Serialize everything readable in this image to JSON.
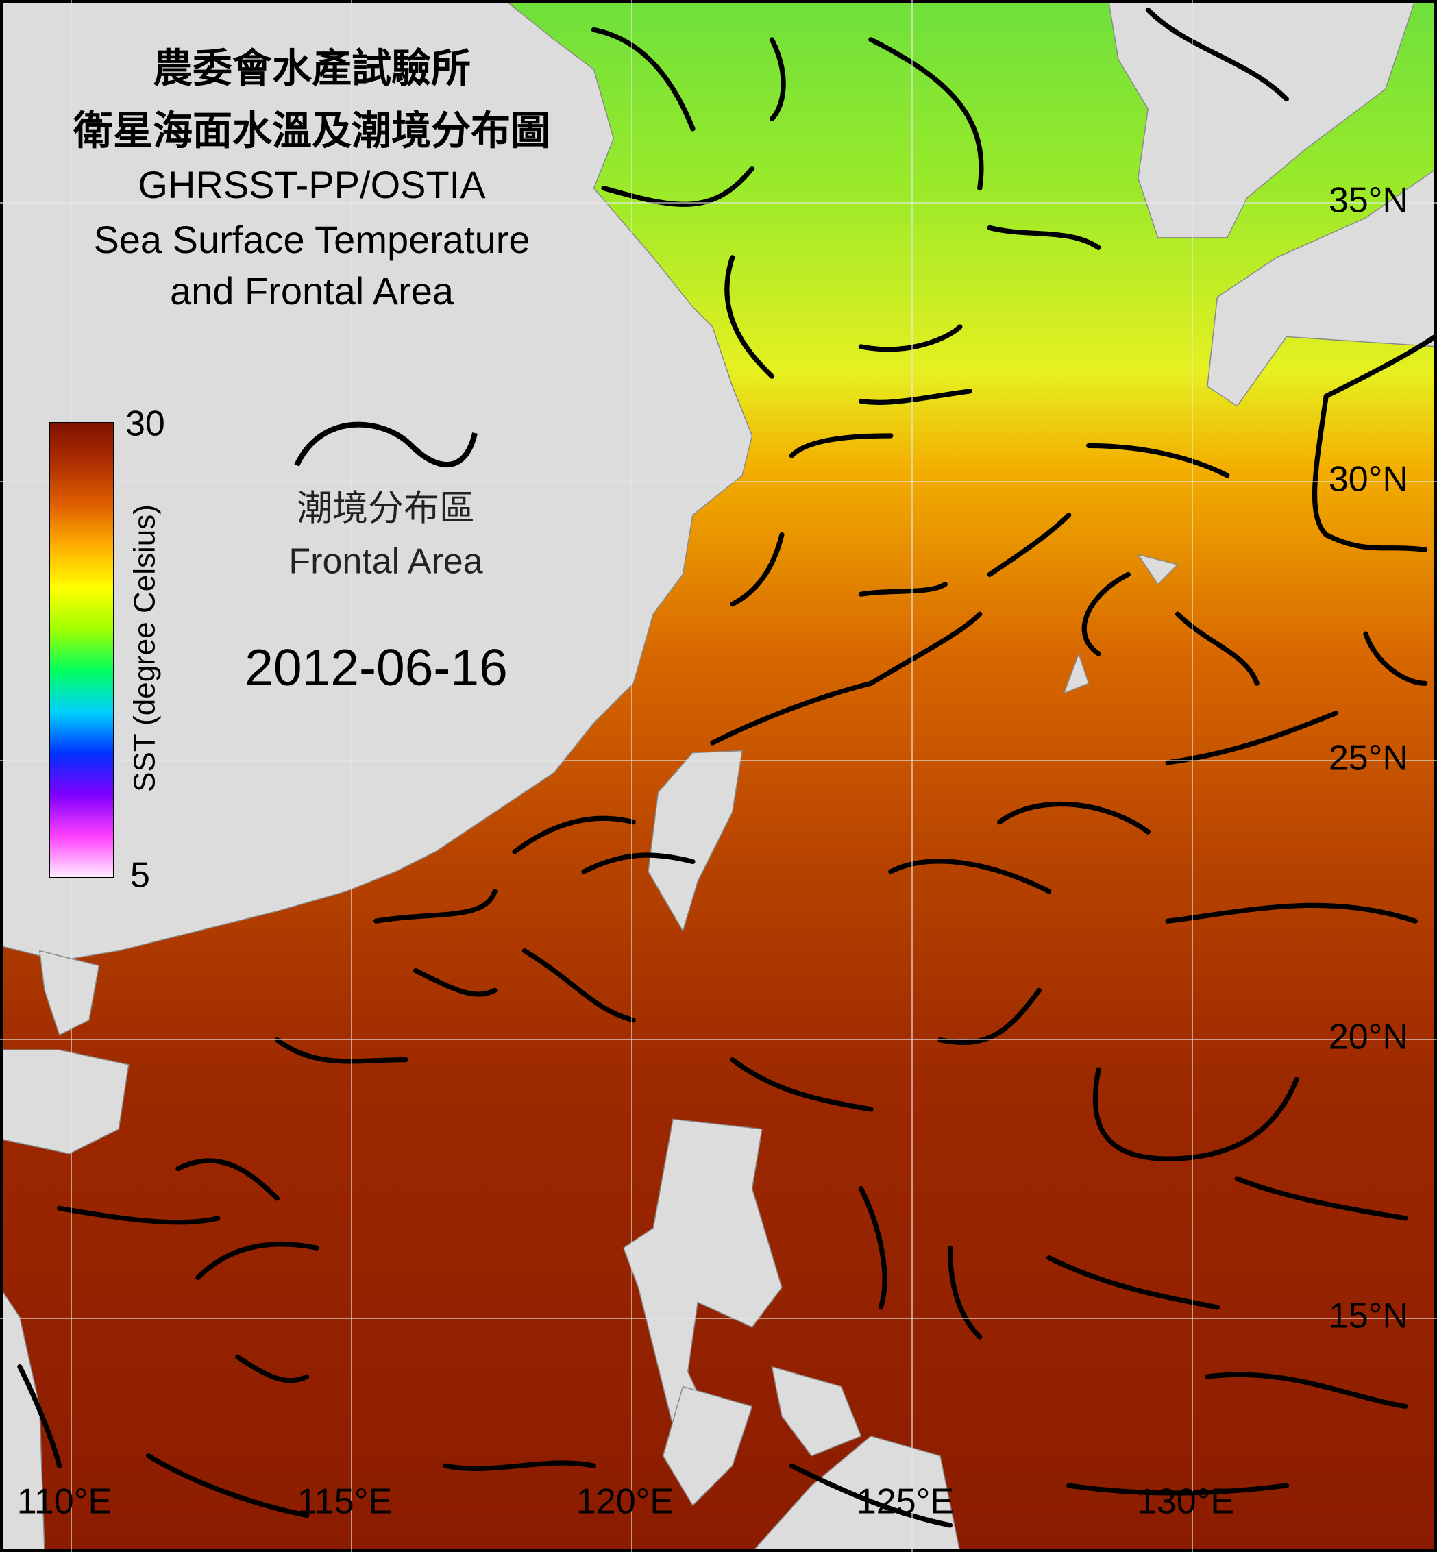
{
  "title_lines": [
    "農委會水產試驗所",
    "衛星海面水溫及潮境分布圖",
    "GHRSST-PP/OSTIA",
    "Sea Surface Temperature",
    "and Frontal Area"
  ],
  "legend": {
    "front_zh": "潮境分布區",
    "front_en": "Frontal Area"
  },
  "date": "2012-06-16",
  "colorbar": {
    "label": "SST (degree Celsius)",
    "min": 5,
    "max": 30,
    "colors": [
      "#fff0ff",
      "#ff40ff",
      "#8000ff",
      "#0030ff",
      "#00d0ff",
      "#00ff60",
      "#a0ff00",
      "#ffff00",
      "#ffb000",
      "#e06000",
      "#b03000",
      "#801000"
    ]
  },
  "lon_ticks": [
    {
      "value": 110,
      "label": "110°E"
    },
    {
      "value": 115,
      "label": "115°E"
    },
    {
      "value": 120,
      "label": "120°E"
    },
    {
      "value": 125,
      "label": "125°E"
    },
    {
      "value": 130,
      "label": "130°E"
    }
  ],
  "lat_ticks": [
    {
      "value": 35,
      "label": "35°N"
    },
    {
      "value": 30,
      "label": "30°N"
    },
    {
      "value": 25,
      "label": "25°N"
    },
    {
      "value": 20,
      "label": "20°N"
    },
    {
      "value": 15,
      "label": "15°N"
    }
  ]
}
